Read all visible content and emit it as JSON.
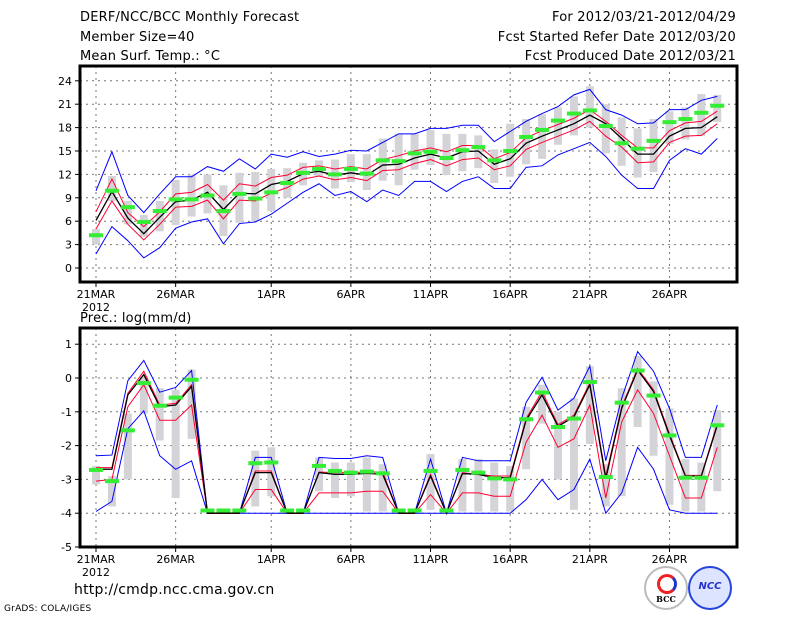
{
  "header": {
    "title": "DERF/NCC/BCC Monthly Forecast",
    "member_size": "Member Size=40",
    "variable": "Mean Surf. Temp.: °C",
    "period": "For 2012/03/21-2012/04/29",
    "started": "Fcst Started Refer Date 2012/03/20",
    "produced": "Fcst Produced Date 2012/03/21"
  },
  "footer": {
    "url": "http://cmdp.ncc.cma.gov.cn",
    "grads": "GrADS: COLA/IGES",
    "logo_bcc": "BCC",
    "logo_ncc": "NCC"
  },
  "colors": {
    "max_min": "#0000ff",
    "spread": "#ff0033",
    "mean": "#000000",
    "obs": "#33ee33",
    "box": "#d4d4d8"
  },
  "chart_data": [
    {
      "type": "line",
      "title": "Mean Surf. Temp.: °C",
      "ylabel": "°C",
      "ylim": [
        -2,
        26
      ],
      "yticks": [
        0,
        3,
        6,
        9,
        12,
        15,
        18,
        21,
        24
      ],
      "x_tick_labels": [
        [
          "21MAR",
          0
        ],
        [
          "26MAR",
          5
        ],
        [
          "1APR",
          11
        ],
        [
          "6APR",
          16
        ],
        [
          "11APR",
          21
        ],
        [
          "16APR",
          26
        ],
        [
          "21APR",
          31
        ],
        [
          "26APR",
          36
        ]
      ],
      "year_label": "2012",
      "grid": true,
      "days": 40,
      "series": {
        "max": [
          9.9,
          14.9,
          9.3,
          7.1,
          9.5,
          11.7,
          11.7,
          13.0,
          12.4,
          14.0,
          12.7,
          14.6,
          14.2,
          14.9,
          14.3,
          14.6,
          15.1,
          15.0,
          16.1,
          17.2,
          17.2,
          17.9,
          17.9,
          18.3,
          18.3,
          16.2,
          17.5,
          18.8,
          19.8,
          20.7,
          22.2,
          22.9,
          20.3,
          19.6,
          18.5,
          18.6,
          20.3,
          20.3,
          21.5,
          22.0
        ],
        "upper": [
          7.2,
          11.4,
          7.1,
          5.3,
          7.2,
          9.5,
          9.7,
          10.7,
          8.7,
          10.8,
          10.5,
          11.6,
          11.9,
          12.9,
          13.1,
          12.7,
          13.0,
          12.7,
          13.9,
          14.4,
          15.0,
          15.4,
          14.9,
          15.7,
          15.7,
          14.0,
          14.8,
          16.7,
          17.6,
          18.4,
          19.2,
          20.3,
          18.8,
          17.0,
          15.4,
          15.4,
          17.6,
          18.6,
          18.8,
          20.1
        ],
        "mean": [
          6.1,
          9.8,
          6.4,
          4.4,
          6.5,
          8.5,
          8.7,
          9.7,
          7.5,
          9.6,
          9.5,
          10.7,
          11.1,
          12.1,
          12.4,
          11.9,
          12.2,
          11.9,
          13.2,
          13.3,
          14.1,
          14.6,
          14.1,
          14.9,
          15.0,
          13.3,
          14.0,
          16.0,
          16.9,
          17.7,
          18.5,
          19.6,
          18.5,
          16.6,
          14.6,
          14.6,
          16.9,
          17.9,
          18.0,
          19.4
        ],
        "lower": [
          5.0,
          8.6,
          5.6,
          3.6,
          5.6,
          7.8,
          7.9,
          8.7,
          6.3,
          8.7,
          8.6,
          9.6,
          10.3,
          11.4,
          11.8,
          11.3,
          11.6,
          11.2,
          12.5,
          12.6,
          13.4,
          13.9,
          13.1,
          13.9,
          14.1,
          12.6,
          13.1,
          15.2,
          16.1,
          16.9,
          17.7,
          18.8,
          16.9,
          15.5,
          13.5,
          13.6,
          16.1,
          16.9,
          17.0,
          18.5
        ],
        "min": [
          1.8,
          5.3,
          3.5,
          1.3,
          2.6,
          5.1,
          5.9,
          6.3,
          3.1,
          5.7,
          5.9,
          6.9,
          8.3,
          9.7,
          10.8,
          9.3,
          9.8,
          8.5,
          10.0,
          9.3,
          11.1,
          11.1,
          9.8,
          11.1,
          11.7,
          10.2,
          10.2,
          12.9,
          13.1,
          14.5,
          15.3,
          16.1,
          14.3,
          11.9,
          10.2,
          10.2,
          13.8,
          15.3,
          14.6,
          16.6
        ],
        "observed": [
          4.2,
          9.9,
          7.8,
          5.9,
          7.3,
          8.8,
          8.8,
          9.3,
          7.3,
          9.5,
          8.9,
          9.7,
          10.9,
          12.2,
          12.7,
          12.0,
          12.7,
          12.1,
          13.8,
          13.7,
          14.7,
          14.9,
          14.1,
          15.1,
          15.5,
          13.8,
          15.0,
          16.8,
          17.7,
          18.9,
          19.8,
          20.2,
          18.2,
          16.0,
          15.3,
          16.3,
          18.7,
          19.1,
          19.9,
          20.8
        ],
        "box_low": [
          3.0,
          8.6,
          5.6,
          4.0,
          4.7,
          5.5,
          6.6,
          7.0,
          4.1,
          5.8,
          6.0,
          7.3,
          9.0,
          10.6,
          11.8,
          10.2,
          11.0,
          10.0,
          11.2,
          10.6,
          12.6,
          13.2,
          11.9,
          12.4,
          12.8,
          10.9,
          11.7,
          13.3,
          14.0,
          15.8,
          17.0,
          18.0,
          14.7,
          13.1,
          11.6,
          12.3,
          15.9,
          16.5,
          16.9,
          18.7
        ],
        "box_high": [
          5.0,
          11.8,
          8.6,
          6.8,
          8.6,
          11.3,
          12.0,
          12.0,
          10.6,
          12.2,
          12.3,
          12.7,
          12.8,
          13.5,
          13.8,
          13.9,
          14.6,
          14.6,
          16.6,
          17.2,
          17.2,
          17.7,
          17.2,
          17.2,
          17.0,
          15.2,
          18.5,
          19.1,
          19.7,
          20.6,
          22.0,
          23.3,
          21.0,
          19.3,
          17.9,
          19.1,
          20.1,
          20.6,
          22.3,
          22.2
        ]
      }
    },
    {
      "type": "line",
      "title": "Prec.: log(mm/d)",
      "ylabel": "log(mm/d)",
      "ylim": [
        -5,
        1.3
      ],
      "yticks": [
        -5,
        -4,
        -3,
        -2,
        -1,
        0,
        1
      ],
      "x_tick_labels": [
        [
          "21MAR",
          0
        ],
        [
          "26MAR",
          5
        ],
        [
          "1APR",
          11
        ],
        [
          "6APR",
          16
        ],
        [
          "11APR",
          21
        ],
        [
          "16APR",
          26
        ],
        [
          "21APR",
          31
        ],
        [
          "26APR",
          36
        ]
      ],
      "year_label": "2012",
      "grid": true,
      "days": 40,
      "series": {
        "max": [
          -2.3,
          -2.28,
          -0.08,
          0.52,
          -0.42,
          -0.28,
          0.22,
          -4,
          -4,
          -4,
          -2.35,
          -2.35,
          -4,
          -4,
          -2.35,
          -2.38,
          -2.38,
          -2.3,
          -2.35,
          -4,
          -4,
          -2.4,
          -4,
          -2.35,
          -2.45,
          -2.45,
          -2.45,
          -0.72,
          0.02,
          -0.95,
          -0.6,
          0.35,
          -2.45,
          -0.6,
          0.78,
          0.2,
          -0.9,
          -2.35,
          -2.35,
          -0.8
        ],
        "upper": [
          -2.65,
          -2.65,
          -0.45,
          0.2,
          -0.8,
          -0.75,
          -0.2,
          -4,
          -4,
          -4,
          -2.75,
          -2.75,
          -4,
          -4,
          -2.78,
          -2.8,
          -2.8,
          -2.78,
          -2.78,
          -4,
          -4,
          -2.85,
          -4,
          -2.8,
          -2.85,
          -2.9,
          -2.9,
          -1.2,
          -0.4,
          -1.38,
          -1.1,
          -0.15,
          -2.9,
          -0.85,
          0.28,
          -0.35,
          -1.65,
          -2.88,
          -2.88,
          -1.35
        ],
        "mean": [
          -2.7,
          -2.7,
          -0.5,
          0.1,
          -0.85,
          -0.8,
          -0.25,
          -4,
          -4,
          -4,
          -2.8,
          -2.8,
          -4,
          -4,
          -2.8,
          -2.85,
          -2.85,
          -2.82,
          -2.85,
          -4,
          -4,
          -2.9,
          -4,
          -2.83,
          -2.85,
          -2.95,
          -2.95,
          -1.25,
          -0.5,
          -1.43,
          -1.15,
          -0.2,
          -2.98,
          -0.9,
          0.24,
          -0.4,
          -1.7,
          -2.9,
          -2.9,
          -1.4
        ],
        "lower": [
          -3.05,
          -3.0,
          -0.85,
          -0.2,
          -1.25,
          -1.25,
          -0.8,
          -4,
          -4,
          -4,
          -3.3,
          -3.3,
          -4,
          -4,
          -3.4,
          -3.4,
          -3.4,
          -3.35,
          -3.35,
          -4,
          -4,
          -3.45,
          -4,
          -3.4,
          -3.4,
          -3.5,
          -3.5,
          -1.9,
          -1.1,
          -2.05,
          -1.8,
          -0.8,
          -3.55,
          -1.3,
          -0.35,
          -1.05,
          -2.3,
          -3.55,
          -3.55,
          -2.05
        ],
        "min": [
          -3.95,
          -3.65,
          -1.5,
          -0.97,
          -2.3,
          -2.7,
          -2.45,
          -4,
          -4,
          -4,
          -4,
          -4,
          -4,
          -4,
          -4,
          -4,
          -4,
          -4,
          -4,
          -4,
          -4,
          -4,
          -4,
          -4,
          -4,
          -4,
          -4,
          -3.6,
          -3.0,
          -3.6,
          -3.3,
          -2.4,
          -4,
          -3.4,
          -2.05,
          -2.7,
          -3.9,
          -4,
          -4,
          -4
        ],
        "observed": [
          -2.72,
          -3.05,
          -1.55,
          -0.15,
          -0.82,
          -0.58,
          -0.05,
          -3.92,
          -3.92,
          -3.92,
          -2.52,
          -2.5,
          -3.92,
          -3.92,
          -2.6,
          -2.75,
          -2.8,
          -2.77,
          -2.82,
          -3.92,
          -3.92,
          -2.75,
          -3.92,
          -2.72,
          -2.8,
          -2.97,
          -3.0,
          -1.22,
          -0.43,
          -1.45,
          -1.2,
          -0.12,
          -2.93,
          -0.73,
          0.22,
          -0.52,
          -1.7,
          -2.95,
          -2.95,
          -1.4
        ],
        "box_low": [
          -3.15,
          -3.8,
          -3.0,
          -1.05,
          -1.85,
          -3.55,
          -1.8,
          null,
          null,
          null,
          -3.8,
          -3.5,
          null,
          null,
          -3.35,
          -3.55,
          -3.5,
          -3.95,
          -3.95,
          null,
          null,
          -3.9,
          null,
          -3.95,
          -3.95,
          -3.95,
          -3.95,
          -2.7,
          -1.35,
          -3.0,
          -3.9,
          -1.95,
          -3.8,
          -3.5,
          -1.45,
          -2.3,
          -3.75,
          -3.95,
          -3.95,
          -3.35
        ],
        "box_high": [
          -2.6,
          -2.9,
          -1.05,
          0.05,
          -0.3,
          -0.35,
          0.25,
          null,
          null,
          null,
          -2.15,
          -2.05,
          null,
          null,
          -2.35,
          -2.5,
          -2.5,
          -2.35,
          -2.55,
          null,
          null,
          -2.25,
          null,
          -2.4,
          -2.4,
          -2.5,
          -2.6,
          -0.85,
          -0.2,
          -1.0,
          -0.6,
          0.35,
          -2.55,
          -0.3,
          0.65,
          -0.1,
          -0.9,
          -2.4,
          -2.5,
          -0.95
        ]
      }
    }
  ]
}
